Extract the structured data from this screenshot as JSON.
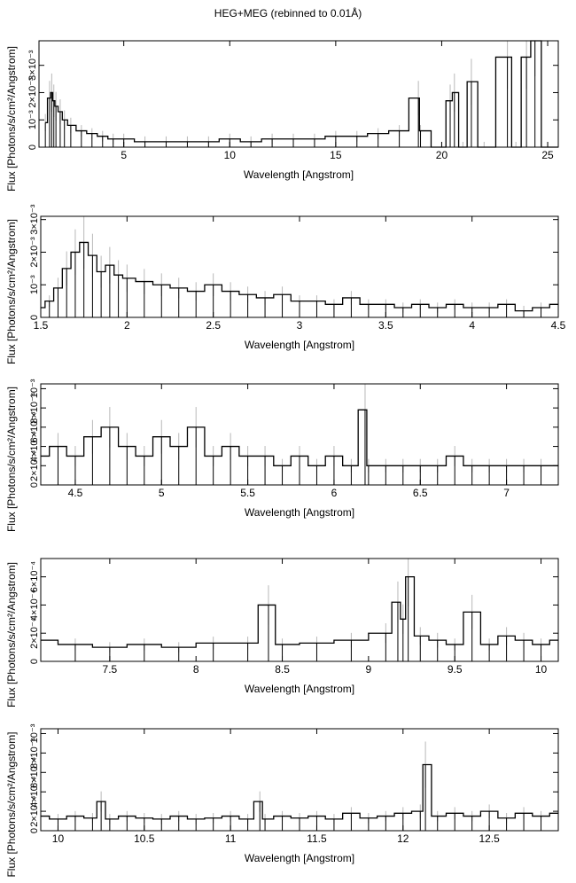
{
  "figure": {
    "title": "HEG+MEG (rebinned to 0.01Å)"
  },
  "chart_data": [
    {
      "type": "line",
      "xlabel": "Wavelength [Angstrom]",
      "ylabel": "Flux [Photons/s/cm²/Angstrom]",
      "xlim": [
        1.0,
        25.5
      ],
      "ylim": [
        0,
        0.0039
      ],
      "x_ticks": [
        5,
        10,
        15,
        20,
        25
      ],
      "y_ticks": [
        0,
        0.001,
        0.002,
        0.003
      ],
      "y_tick_labels": [
        "0",
        "10⁻³",
        "2×10⁻³",
        "3×10⁻³"
      ],
      "grid": false,
      "series": [
        {
          "x": [
            1.3,
            1.5,
            1.6,
            1.7,
            1.8,
            2.0,
            2.2,
            2.5,
            3.0,
            3.5,
            4.0,
            4.5,
            5.0,
            6.0,
            7.0,
            8.0,
            9.0,
            10.0,
            11.0,
            12.0,
            13.0,
            14.0,
            15.0,
            16.0,
            17.0,
            18.0,
            18.9,
            19.0,
            20.0,
            20.4,
            20.6,
            21.0,
            21.4,
            22.0,
            23.1,
            23.5,
            24.0,
            24.4,
            25.0,
            25.5
          ],
          "y": [
            0.0009,
            0.0018,
            0.002,
            0.0017,
            0.0015,
            0.0013,
            0.001,
            0.0008,
            0.0006,
            0.0005,
            0.0004,
            0.0003,
            0.0003,
            0.0002,
            0.0002,
            0.0002,
            0.0002,
            0.0003,
            0.0002,
            0.0003,
            0.0003,
            0.0003,
            0.0004,
            0.0004,
            0.0005,
            0.0006,
            0.0018,
            0.0006,
            0.0,
            0.0017,
            0.002,
            0.0,
            0.0024,
            0.0,
            0.0033,
            0.0,
            0.0033,
            0.004,
            0.0,
            0.0
          ]
        }
      ]
    },
    {
      "type": "line",
      "xlabel": "Wavelength [Angstrom]",
      "ylabel": "Flux [Photons/s/cm²/Angstrom]",
      "xlim": [
        1.5,
        4.5
      ],
      "ylim": [
        0,
        0.0031
      ],
      "x_ticks": [
        1.5,
        2,
        2.5,
        3,
        3.5,
        4,
        4.5
      ],
      "y_ticks": [
        0,
        0.001,
        0.002,
        0.003
      ],
      "y_tick_labels": [
        "0",
        "10⁻³",
        "2×10⁻³",
        "3×10⁻³"
      ],
      "grid": false,
      "series": [
        {
          "x": [
            1.5,
            1.55,
            1.6,
            1.65,
            1.7,
            1.75,
            1.8,
            1.85,
            1.9,
            1.95,
            2.0,
            2.1,
            2.2,
            2.3,
            2.4,
            2.5,
            2.6,
            2.7,
            2.8,
            2.9,
            3.0,
            3.1,
            3.2,
            3.3,
            3.4,
            3.5,
            3.6,
            3.7,
            3.8,
            3.9,
            4.0,
            4.1,
            4.2,
            4.3,
            4.4,
            4.5
          ],
          "y": [
            0.0003,
            0.0005,
            0.0009,
            0.0015,
            0.002,
            0.0023,
            0.0019,
            0.0014,
            0.0016,
            0.0013,
            0.0012,
            0.0011,
            0.001,
            0.0009,
            0.0008,
            0.001,
            0.0008,
            0.0007,
            0.0006,
            0.0007,
            0.0005,
            0.0005,
            0.0004,
            0.0006,
            0.0004,
            0.0004,
            0.0003,
            0.0004,
            0.0003,
            0.0004,
            0.0003,
            0.0003,
            0.0004,
            0.0002,
            0.0003,
            0.0004
          ]
        }
      ]
    },
    {
      "type": "line",
      "xlabel": "Wavelength [Angstrom]",
      "ylabel": "Flux [Photons/s/cm²/Angstrom]",
      "xlim": [
        4.3,
        7.3
      ],
      "ylim": [
        0,
        0.00105
      ],
      "x_ticks": [
        4.5,
        5,
        5.5,
        6,
        6.5,
        7
      ],
      "y_ticks": [
        0,
        0.0002,
        0.0004,
        0.0006,
        0.0008,
        0.001
      ],
      "y_tick_labels": [
        "0",
        "2×10⁻⁴",
        "4×10⁻⁴",
        "6×10⁻⁴",
        "8×10⁻⁴",
        "10⁻³"
      ],
      "grid": false,
      "series": [
        {
          "x": [
            4.3,
            4.4,
            4.5,
            4.6,
            4.7,
            4.8,
            4.9,
            5.0,
            5.1,
            5.2,
            5.3,
            5.4,
            5.5,
            5.6,
            5.7,
            5.8,
            5.9,
            6.0,
            6.1,
            6.18,
            6.2,
            6.3,
            6.4,
            6.5,
            6.6,
            6.7,
            6.8,
            6.9,
            7.0,
            7.1,
            7.2,
            7.3
          ],
          "y": [
            0.0003,
            0.0004,
            0.0003,
            0.0005,
            0.0006,
            0.0004,
            0.0003,
            0.0005,
            0.0004,
            0.0006,
            0.0003,
            0.0004,
            0.0003,
            0.0003,
            0.0002,
            0.0003,
            0.0002,
            0.0003,
            0.0002,
            0.00078,
            0.0002,
            0.0002,
            0.0002,
            0.0002,
            0.0002,
            0.0003,
            0.0002,
            0.0002,
            0.0002,
            0.0002,
            0.0002,
            0.0002
          ]
        }
      ]
    },
    {
      "type": "line",
      "xlabel": "Wavelength [Angstrom]",
      "ylabel": "Flux [Photons/s/cm²/Angstrom]",
      "xlim": [
        7.1,
        10.1
      ],
      "ylim": [
        0,
        0.00073
      ],
      "x_ticks": [
        7.5,
        8,
        8.5,
        9,
        9.5,
        10
      ],
      "y_ticks": [
        0,
        0.0002,
        0.0004,
        0.0006
      ],
      "y_tick_labels": [
        "0",
        "2×10⁻⁴",
        "4×10⁻⁴",
        "6×10⁻⁴"
      ],
      "grid": false,
      "series": [
        {
          "x": [
            7.1,
            7.3,
            7.5,
            7.7,
            7.9,
            8.1,
            8.3,
            8.42,
            8.5,
            8.7,
            8.9,
            9.1,
            9.17,
            9.2,
            9.23,
            9.3,
            9.4,
            9.5,
            9.6,
            9.7,
            9.8,
            9.9,
            10.0,
            10.1
          ],
          "y": [
            0.00015,
            0.00012,
            0.0001,
            0.00012,
            0.0001,
            0.00013,
            0.00013,
            0.0004,
            0.00012,
            0.00013,
            0.00015,
            0.0002,
            0.00042,
            0.0003,
            0.0006,
            0.00018,
            0.00015,
            0.00012,
            0.00035,
            0.00012,
            0.00018,
            0.00015,
            0.00012,
            0.00015
          ]
        }
      ]
    },
    {
      "type": "line",
      "xlabel": "Wavelength [Angstrom]",
      "ylabel": "Flux [Photons/s/cm²/Angstrom]",
      "xlim": [
        9.9,
        12.9
      ],
      "ylim": [
        0,
        0.00105
      ],
      "x_ticks": [
        10,
        10.5,
        11,
        11.5,
        12,
        12.5
      ],
      "y_ticks": [
        0,
        0.0002,
        0.0004,
        0.0006,
        0.0008,
        0.001
      ],
      "y_tick_labels": [
        "0",
        "2×10⁻⁴",
        "4×10⁻⁴",
        "6×10⁻⁴",
        "8×10⁻⁴",
        "10⁻³"
      ],
      "grid": false,
      "series": [
        {
          "x": [
            9.9,
            10.0,
            10.1,
            10.2,
            10.25,
            10.3,
            10.4,
            10.5,
            10.6,
            10.7,
            10.8,
            10.9,
            11.0,
            11.1,
            11.17,
            11.2,
            11.3,
            11.4,
            11.5,
            11.6,
            11.7,
            11.8,
            11.9,
            12.0,
            12.1,
            12.13,
            12.2,
            12.3,
            12.4,
            12.5,
            12.6,
            12.7,
            12.8,
            12.9
          ],
          "y": [
            0.00015,
            0.00012,
            0.00015,
            0.00013,
            0.0003,
            0.00012,
            0.00015,
            0.00013,
            0.00012,
            0.00015,
            0.00012,
            0.00013,
            0.00015,
            0.00012,
            0.0003,
            0.00012,
            0.00015,
            0.00013,
            0.00015,
            0.00012,
            0.00018,
            0.00013,
            0.00015,
            0.00018,
            0.0002,
            0.00068,
            0.00015,
            0.00018,
            0.00015,
            0.0002,
            0.00013,
            0.00018,
            0.00015,
            0.00018
          ]
        }
      ]
    }
  ]
}
